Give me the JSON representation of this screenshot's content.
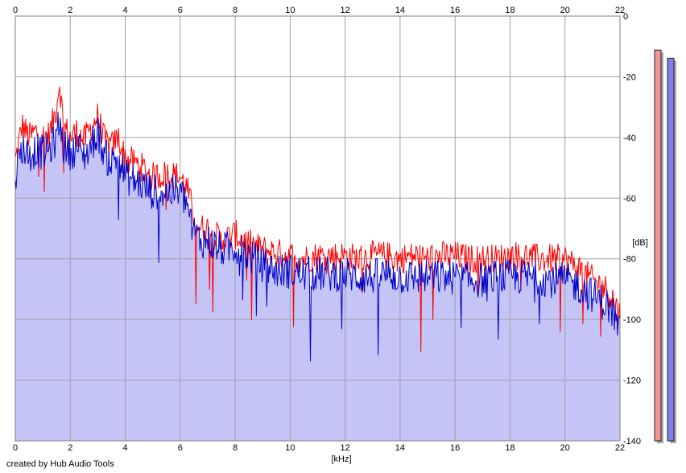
{
  "colors": {
    "background": "#ffffff",
    "plot_fill": "#c4c4f7",
    "grid": "#a0a0a0",
    "channel_left": "#ff0000",
    "channel_right": "#0000c8",
    "meter_left": "#f29494",
    "meter_right": "#8080e8",
    "meter_shadow": "#a8a8a8"
  },
  "chart_data": {
    "type": "line",
    "title": "",
    "xlabel": "[kHz]",
    "ylabel": "[dB]",
    "xlim": [
      0,
      22
    ],
    "ylim": [
      -140,
      0
    ],
    "x_ticks": [
      0,
      2,
      4,
      6,
      8,
      10,
      12,
      14,
      16,
      18,
      20,
      22
    ],
    "y_ticks": [
      0,
      -20,
      -40,
      -60,
      -80,
      -100,
      -120,
      -140
    ],
    "x_axis_position": "top and bottom",
    "y_axis_position": "right",
    "grid": true,
    "filled_area": true,
    "legend": "none",
    "series": [
      {
        "color": "#ff0000",
        "x": [
          0,
          0.25,
          0.5,
          0.75,
          1.0,
          1.25,
          1.5,
          1.6,
          1.75,
          2.0,
          2.25,
          2.5,
          2.75,
          3.0,
          3.25,
          3.5,
          3.75,
          4.0,
          4.5,
          5.0,
          5.5,
          6.0,
          6.25,
          6.5,
          6.75,
          7.0,
          7.5,
          8.0,
          8.5,
          9.0,
          9.5,
          10.0,
          10.5,
          11.0,
          11.5,
          12.0,
          12.5,
          13.0,
          13.5,
          14.0,
          14.5,
          15.0,
          15.5,
          16.0,
          16.5,
          17.0,
          17.5,
          18.0,
          18.5,
          19.0,
          19.5,
          20.0,
          20.5,
          21.0,
          21.5,
          21.75,
          22.0
        ],
        "y": [
          -48,
          -36,
          -40,
          -38,
          -40,
          -39,
          -30,
          -21,
          -36,
          -40,
          -38,
          -41,
          -37,
          -33,
          -41,
          -43,
          -40,
          -47,
          -49,
          -53,
          -52,
          -53,
          -57,
          -66,
          -70,
          -70,
          -74,
          -72,
          -75,
          -77,
          -78,
          -79,
          -80,
          -79,
          -79,
          -79,
          -80,
          -79,
          -79,
          -80,
          -79,
          -80,
          -79,
          -79,
          -80,
          -80,
          -80,
          -79,
          -79,
          -80,
          -80,
          -80,
          -83,
          -87,
          -90,
          -93,
          -99
        ]
      },
      {
        "color": "#0000c8",
        "x": [
          0,
          0.25,
          0.5,
          0.75,
          1.0,
          1.25,
          1.5,
          1.6,
          1.75,
          2.0,
          2.25,
          2.5,
          2.75,
          3.0,
          3.25,
          3.5,
          3.75,
          4.0,
          4.5,
          5.0,
          5.5,
          6.0,
          6.25,
          6.5,
          6.75,
          7.0,
          7.5,
          8.0,
          8.5,
          9.0,
          9.5,
          10.0,
          10.5,
          11.0,
          11.5,
          12.0,
          12.5,
          13.0,
          13.5,
          14.0,
          14.5,
          15.0,
          15.5,
          16.0,
          16.5,
          17.0,
          17.5,
          18.0,
          18.5,
          19.0,
          19.5,
          20.0,
          20.5,
          21.0,
          21.5,
          21.75,
          22.0
        ],
        "y": [
          -52,
          -43,
          -46,
          -44,
          -45,
          -44,
          -40,
          -34,
          -43,
          -45,
          -43,
          -46,
          -43,
          -38,
          -46,
          -48,
          -46,
          -53,
          -55,
          -58,
          -58,
          -58,
          -62,
          -71,
          -74,
          -74,
          -77,
          -76,
          -79,
          -82,
          -84,
          -84,
          -85,
          -85,
          -85,
          -85,
          -86,
          -86,
          -85,
          -86,
          -86,
          -86,
          -86,
          -86,
          -87,
          -87,
          -86,
          -86,
          -86,
          -86,
          -87,
          -87,
          -89,
          -92,
          -95,
          -98,
          -104
        ]
      }
    ],
    "level_meters": [
      {
        "channel": "left",
        "color": "#f29494",
        "peak_fraction": 0.96
      },
      {
        "channel": "right",
        "color": "#8080e8",
        "peak_fraction": 0.94
      }
    ]
  },
  "footer": {
    "credit": "created by Hub Audio Tools"
  }
}
